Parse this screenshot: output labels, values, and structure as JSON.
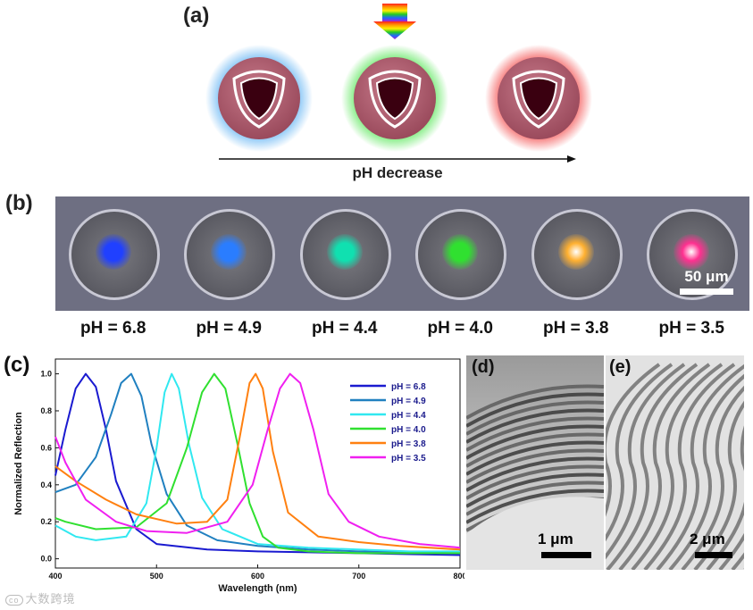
{
  "panel_a": {
    "label": "(a)",
    "caption": "pH decrease",
    "spheres": [
      {
        "glow": "#3aa0f0",
        "name": "blue"
      },
      {
        "glow": "#2ee02e",
        "name": "green"
      },
      {
        "glow": "#f02020",
        "name": "red"
      }
    ]
  },
  "panel_b": {
    "label": "(b)",
    "scale_label": "50 μm",
    "images": [
      {
        "ph": "pH = 6.8",
        "color": "#2040ff"
      },
      {
        "ph": "pH = 4.9",
        "color": "#2a7dff"
      },
      {
        "ph": "pH = 4.4",
        "color": "#10e0b0"
      },
      {
        "ph": "pH = 4.0",
        "color": "#30e030"
      },
      {
        "ph": "pH = 3.8",
        "color": "#ffb030"
      },
      {
        "ph": "pH = 3.5",
        "color": "#ff3090"
      }
    ]
  },
  "panel_d": {
    "label": "(d)",
    "scale_label": "1 μm"
  },
  "panel_e": {
    "label": "(e)",
    "scale_label": "2 μm"
  },
  "watermark": "大数跨境",
  "chart_data": {
    "type": "line",
    "label": "(c)",
    "xlabel": "Wavelength (nm)",
    "ylabel": "Normalized Reflection",
    "xlim": [
      400,
      800
    ],
    "ylim": [
      -0.05,
      1.08
    ],
    "xticks": [
      400,
      500,
      600,
      700,
      800
    ],
    "yticks": [
      0.0,
      0.2,
      0.4,
      0.6,
      0.8,
      1.0
    ],
    "xtick_labels": [
      "400",
      "500",
      "600",
      "700",
      "800"
    ],
    "ytick_labels": [
      "0.0",
      "0.2",
      "0.4",
      "0.6",
      "0.8",
      "1.0"
    ],
    "legend_position": "top-right",
    "series": [
      {
        "name": "pH = 6.8",
        "color": "#1a1ad0",
        "x": [
          400,
          410,
          420,
          430,
          440,
          450,
          460,
          480,
          500,
          550,
          600,
          650,
          700,
          750,
          800
        ],
        "y": [
          0.45,
          0.7,
          0.92,
          1.0,
          0.93,
          0.7,
          0.42,
          0.16,
          0.08,
          0.05,
          0.04,
          0.035,
          0.03,
          0.025,
          0.02
        ]
      },
      {
        "name": "pH = 4.9",
        "color": "#2080c0",
        "x": [
          400,
          420,
          440,
          455,
          465,
          475,
          485,
          495,
          510,
          530,
          560,
          600,
          650,
          700,
          750,
          800
        ],
        "y": [
          0.36,
          0.4,
          0.55,
          0.78,
          0.95,
          1.0,
          0.88,
          0.62,
          0.35,
          0.18,
          0.1,
          0.07,
          0.05,
          0.04,
          0.035,
          0.03
        ]
      },
      {
        "name": "pH = 4.4",
        "color": "#30e8f0",
        "x": [
          400,
          420,
          440,
          470,
          490,
          500,
          508,
          515,
          522,
          532,
          545,
          565,
          600,
          650,
          700,
          750,
          800
        ],
        "y": [
          0.18,
          0.12,
          0.1,
          0.12,
          0.3,
          0.6,
          0.9,
          1.0,
          0.92,
          0.62,
          0.33,
          0.16,
          0.08,
          0.06,
          0.05,
          0.04,
          0.04
        ]
      },
      {
        "name": "pH = 4.0",
        "color": "#30e030",
        "x": [
          400,
          410,
          440,
          480,
          510,
          530,
          545,
          557,
          568,
          580,
          592,
          605,
          620,
          650,
          700,
          750,
          800
        ],
        "y": [
          0.22,
          0.2,
          0.16,
          0.17,
          0.3,
          0.6,
          0.9,
          1.0,
          0.92,
          0.62,
          0.3,
          0.12,
          0.06,
          0.04,
          0.03,
          0.03,
          0.03
        ]
      },
      {
        "name": "pH = 3.8",
        "color": "#ff8010",
        "x": [
          400,
          420,
          450,
          480,
          520,
          550,
          570,
          582,
          592,
          598,
          605,
          615,
          630,
          660,
          700,
          740,
          800
        ],
        "y": [
          0.5,
          0.42,
          0.32,
          0.24,
          0.19,
          0.2,
          0.32,
          0.65,
          0.95,
          1.0,
          0.92,
          0.58,
          0.25,
          0.12,
          0.09,
          0.07,
          0.05
        ]
      },
      {
        "name": "pH = 3.5",
        "color": "#f020f0",
        "x": [
          400,
          410,
          430,
          460,
          490,
          530,
          570,
          595,
          610,
          622,
          632,
          642,
          655,
          670,
          690,
          720,
          760,
          800
        ],
        "y": [
          0.66,
          0.52,
          0.32,
          0.2,
          0.15,
          0.14,
          0.2,
          0.4,
          0.7,
          0.92,
          1.0,
          0.95,
          0.7,
          0.35,
          0.2,
          0.12,
          0.08,
          0.06
        ]
      }
    ]
  }
}
